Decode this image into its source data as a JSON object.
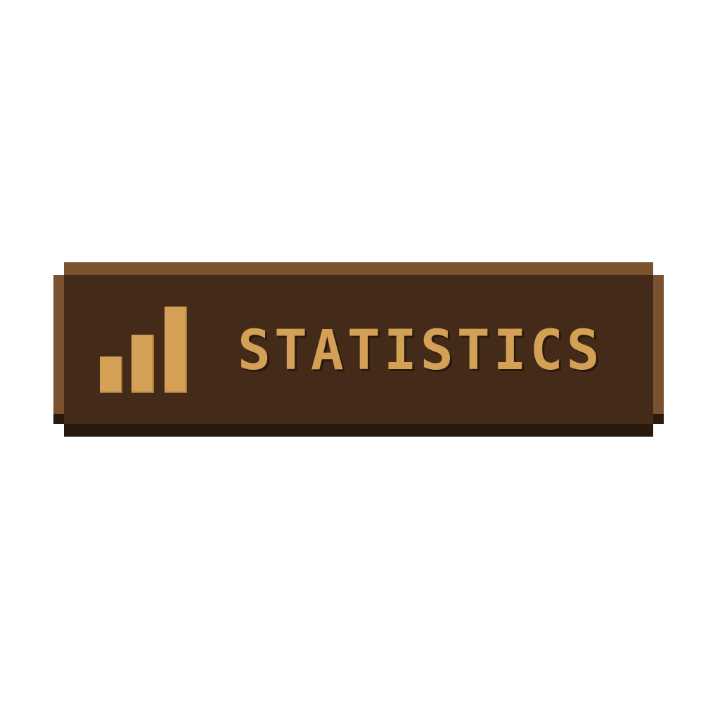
{
  "button": {
    "label": "STATISTICS",
    "icon": "bar-chart-icon"
  },
  "colors": {
    "face": "#442b19",
    "rim": "#7b5230",
    "shadow": "#2a1a0d",
    "accent": "#d4a055"
  }
}
